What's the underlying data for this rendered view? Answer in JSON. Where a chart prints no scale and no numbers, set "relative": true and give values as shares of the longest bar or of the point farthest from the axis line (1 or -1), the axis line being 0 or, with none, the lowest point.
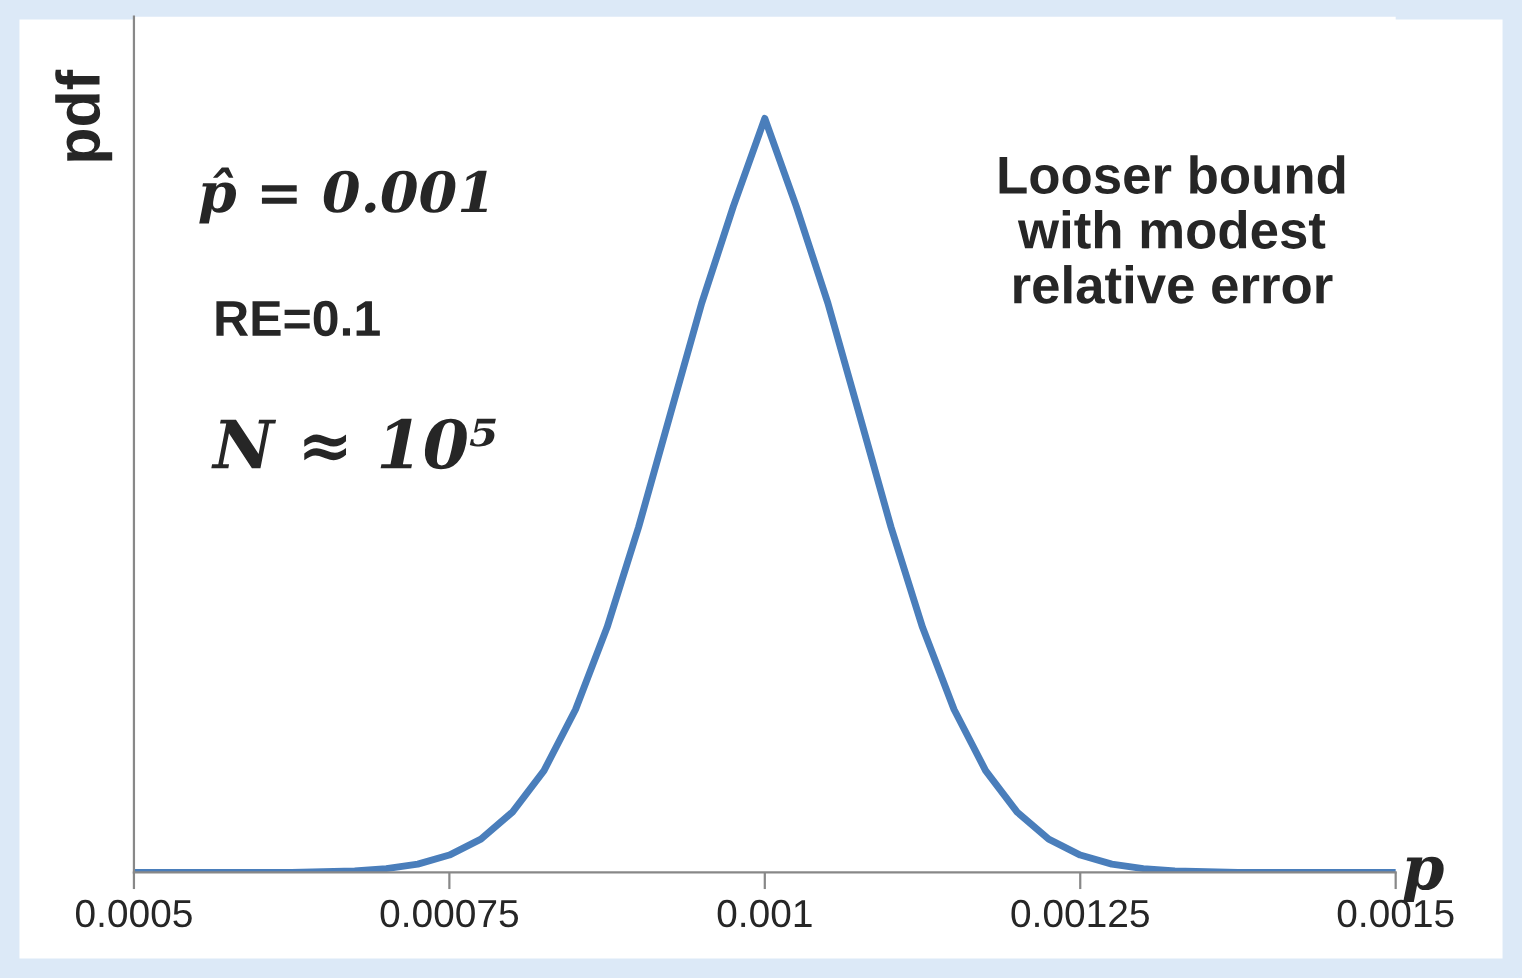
{
  "chart_data": {
    "type": "line",
    "relative": true,
    "ylabel": "pdf",
    "xlabel": "p",
    "x": [
      0.0005,
      0.000525,
      0.00055,
      0.000575,
      0.0006,
      0.000625,
      0.00065,
      0.000675,
      0.0007,
      0.000725,
      0.00075,
      0.000775,
      0.0008,
      0.000825,
      0.00085,
      0.000875,
      0.0009,
      0.000925,
      0.00095,
      0.000975,
      0.001,
      0.001025,
      0.00105,
      0.001075,
      0.0011,
      0.001125,
      0.00115,
      0.001175,
      0.0012,
      0.001225,
      0.00125,
      0.001275,
      0.0013,
      0.001325,
      0.00135,
      0.001375,
      0.0014,
      0.001425,
      0.00145,
      0.001475,
      0.0015
    ],
    "series": [
      {
        "color": "#4a7ebb",
        "values": [
          0,
          0,
          0,
          0,
          0,
          0,
          0.001,
          0.002,
          0.005,
          0.011,
          0.023,
          0.044,
          0.08,
          0.135,
          0.216,
          0.325,
          0.458,
          0.607,
          0.755,
          0.883,
          1,
          0.883,
          0.755,
          0.607,
          0.458,
          0.325,
          0.216,
          0.135,
          0.08,
          0.044,
          0.023,
          0.011,
          0.005,
          0.002,
          0.001,
          0,
          0,
          0,
          0,
          0,
          0
        ]
      }
    ],
    "xlim": [
      0.0005,
      0.0015
    ],
    "xticks": [
      0.0005,
      0.00075,
      0.001,
      0.00125,
      0.0015
    ],
    "grid": false,
    "legend": false,
    "marker": "none",
    "line_style": "solid",
    "annotations": [
      "p̂ = 0.001",
      "RE=0.1",
      "N ≈ 10⁵",
      "Looser bound\nwith modest\nrelative error"
    ]
  }
}
